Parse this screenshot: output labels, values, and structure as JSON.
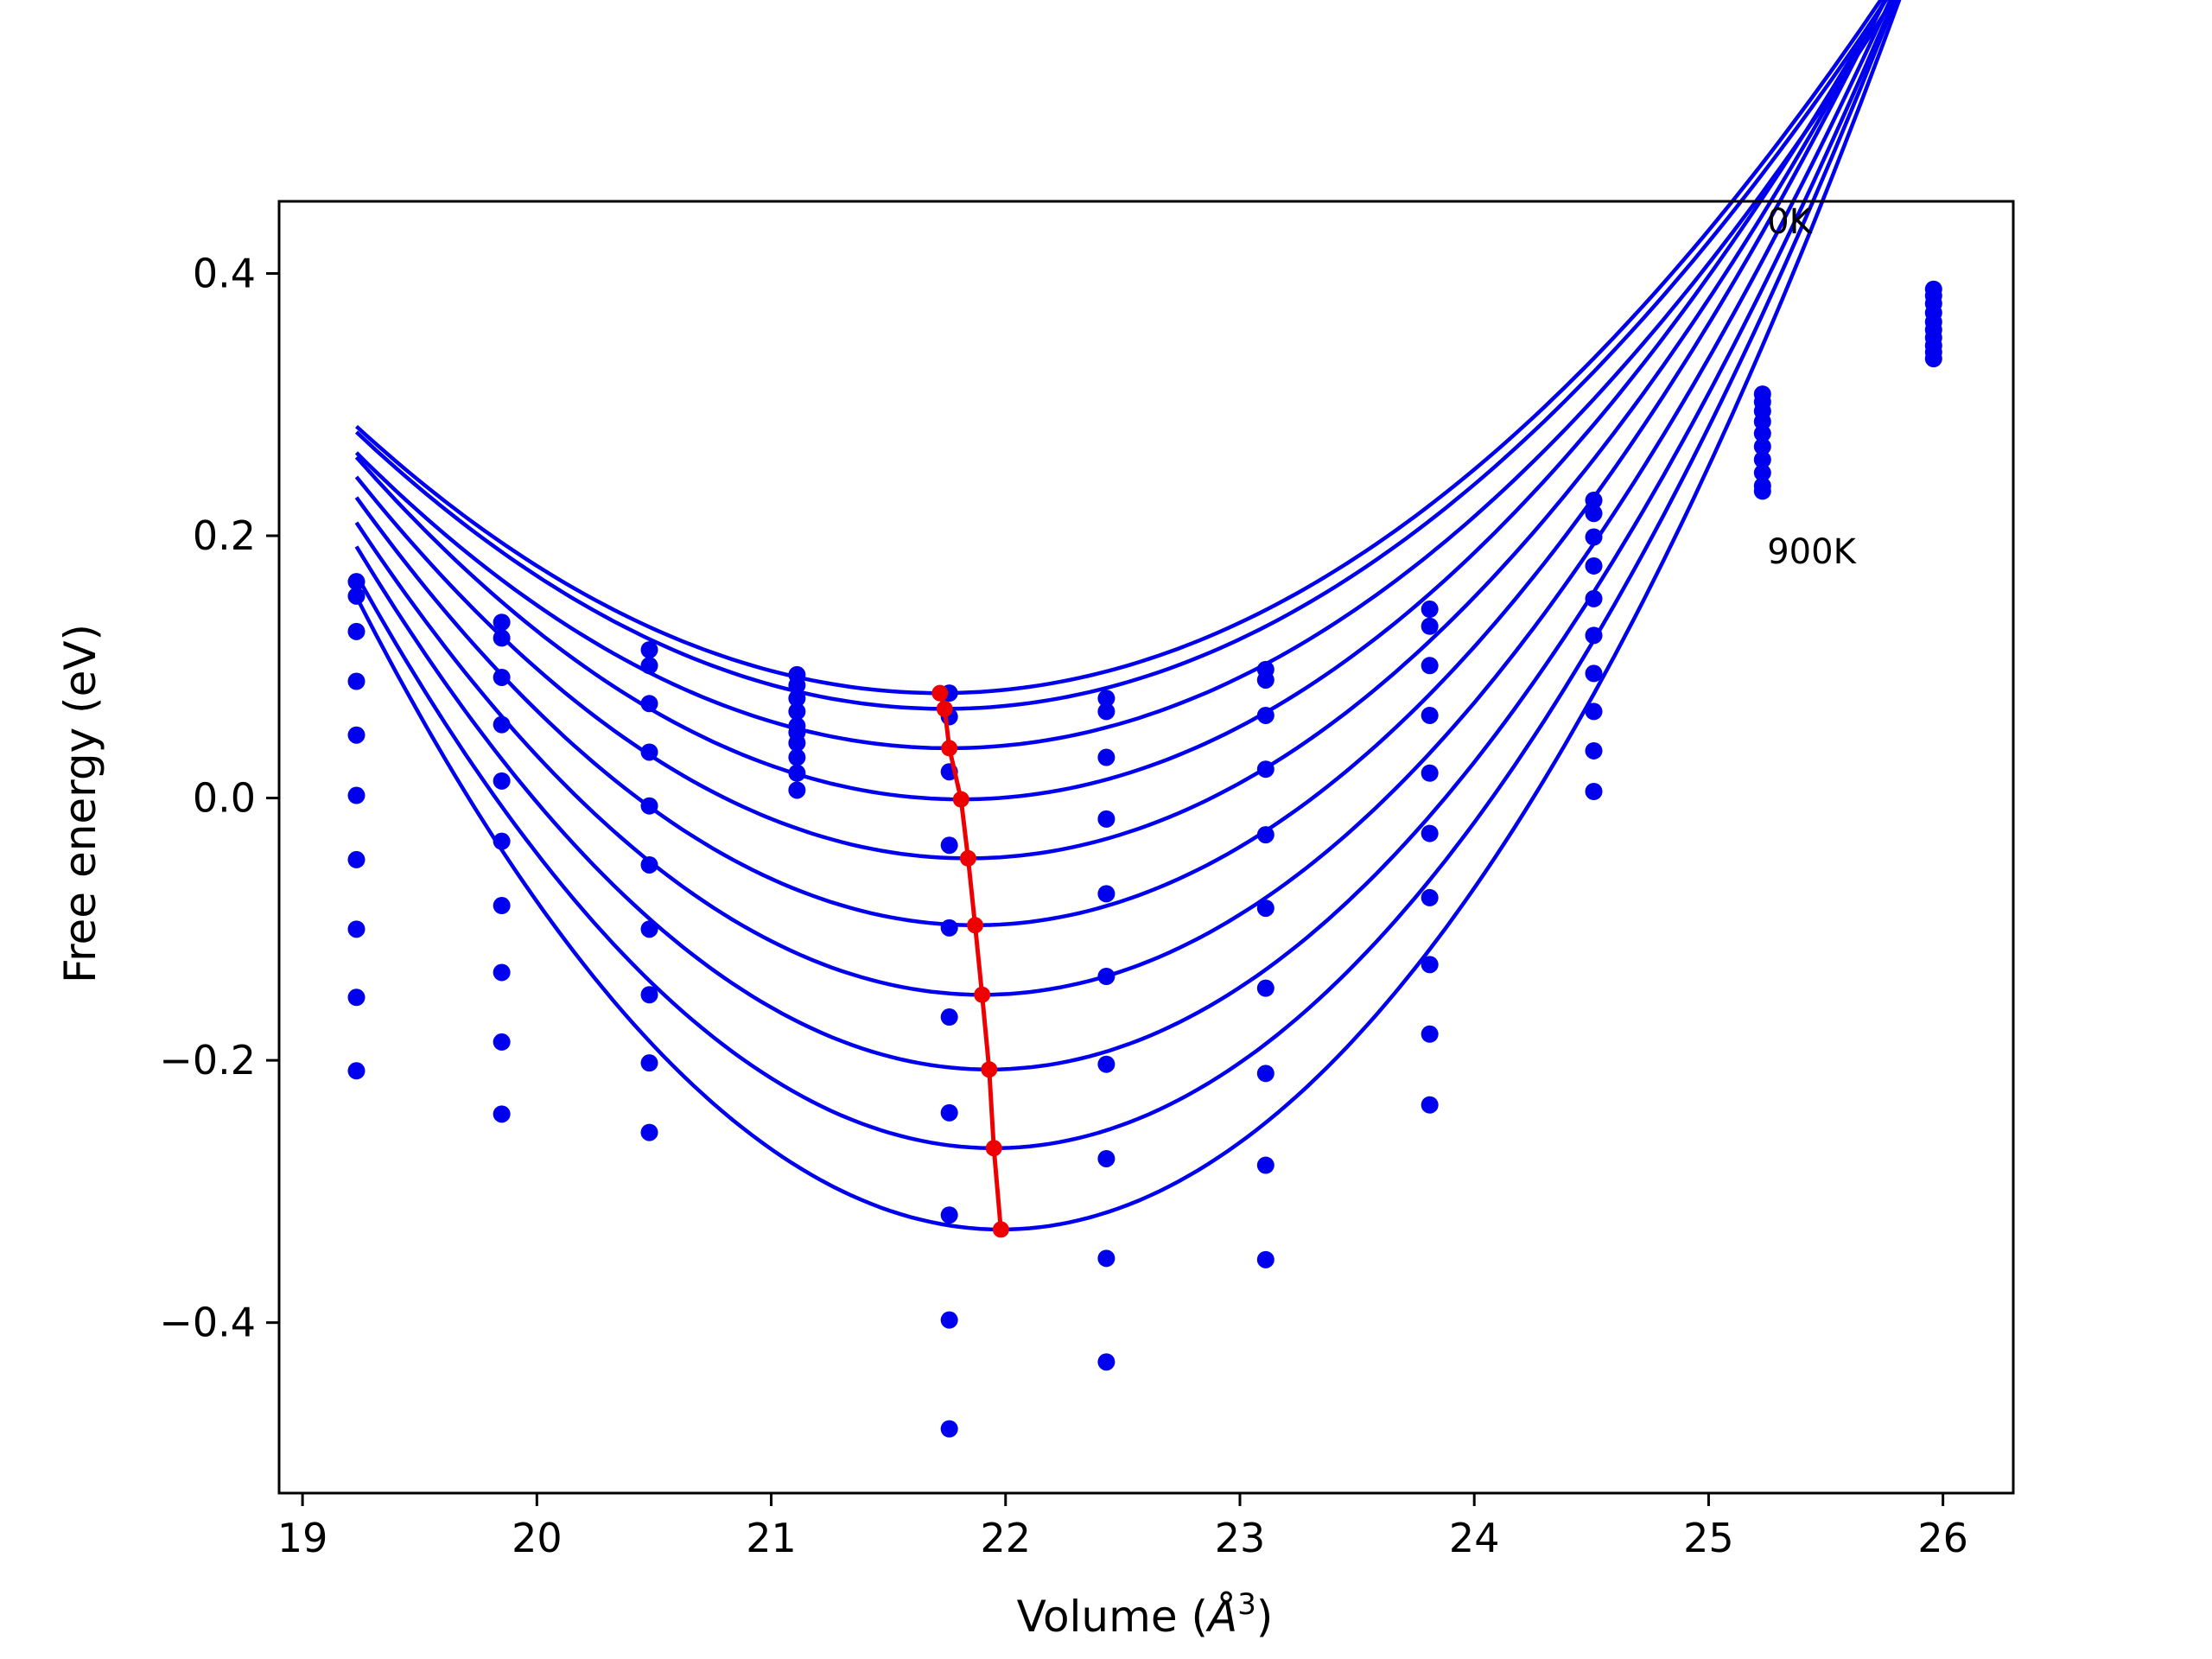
{
  "chart_data": {
    "type": "scatter",
    "title": "",
    "xlabel": "Volume (",
    "xlabel_symbol": "Å",
    "xlabel_sup": "3",
    "xlabel_close": ")",
    "ylabel": "Free energy (eV)",
    "xlim": [
      18.9,
      26.3
    ],
    "ylim": [
      -0.53,
      0.455
    ],
    "xticks": [
      19,
      20,
      21,
      22,
      23,
      24,
      25,
      26
    ],
    "xtick_labels": [
      "19",
      "20",
      "21",
      "22",
      "23",
      "24",
      "25",
      "26"
    ],
    "yticks": [
      -0.4,
      -0.2,
      0.0,
      0.2,
      0.4
    ],
    "ytick_labels": [
      "−0.4",
      "−0.2",
      "0.0",
      "0.2",
      "0.4"
    ],
    "grid": false,
    "legend": "none",
    "colors": {
      "points": "#0000ee",
      "fits": "#0000ee",
      "minima": "#ee0000",
      "axes": "#000000"
    },
    "annotations": [
      {
        "text": "0K",
        "x": 25.25,
        "y": 0.44
      },
      {
        "text": "900K",
        "x": 25.25,
        "y": 0.188
      }
    ],
    "points": [
      {
        "x": 19.23,
        "y": [
          0.165,
          0.154,
          0.127,
          0.089,
          0.048,
          0.002,
          -0.047,
          -0.1,
          -0.152,
          -0.208
        ]
      },
      {
        "x": 19.85,
        "y": [
          0.134,
          0.122,
          0.092,
          0.056,
          0.013,
          -0.033,
          -0.082,
          -0.133,
          -0.186,
          -0.241
        ]
      },
      {
        "x": 20.48,
        "y": [
          0.113,
          0.101,
          0.072,
          0.035,
          -0.006,
          -0.051,
          -0.1,
          -0.15,
          -0.202,
          -0.255
        ]
      },
      {
        "x": 21.11,
        "y": [
          0.094,
          0.086,
          0.076,
          0.066,
          0.055,
          0.05,
          0.042,
          0.031,
          0.019,
          0.006
        ]
      },
      {
        "x": 21.76,
        "y": [
          0.08,
          0.062,
          0.02,
          -0.036,
          -0.099,
          -0.167,
          -0.24,
          -0.318,
          -0.398,
          -0.481
        ]
      },
      {
        "x": 22.43,
        "y": [
          0.076,
          0.066,
          0.031,
          -0.016,
          -0.073,
          -0.136,
          -0.203,
          -0.275,
          -0.351,
          -0.43
        ]
      },
      {
        "x": 23.11,
        "y": [
          0.098,
          0.09,
          0.063,
          0.022,
          -0.028,
          -0.084,
          -0.145,
          -0.21,
          -0.28,
          -0.352
        ]
      },
      {
        "x": 23.81,
        "y": [
          0.144,
          0.131,
          0.101,
          0.063,
          0.019,
          -0.027,
          -0.076,
          -0.127,
          -0.18,
          -0.234
        ]
      },
      {
        "x": 24.51,
        "y": [
          0.227,
          0.217,
          0.199,
          0.177,
          0.152,
          0.124,
          0.095,
          0.066,
          0.036,
          0.005
        ]
      },
      {
        "x": 25.23,
        "y": [
          0.308,
          0.302,
          0.295,
          0.287,
          0.278,
          0.268,
          0.258,
          0.248,
          0.238,
          0.234
        ]
      },
      {
        "x": 25.96,
        "y": [
          0.388,
          0.383,
          0.377,
          0.37,
          0.363,
          0.357,
          0.351,
          0.345,
          0.34,
          0.335
        ]
      }
    ],
    "fit_curves": [
      {
        "v0": 21.72,
        "e0": 0.08,
        "k": 0.0328,
        "v_start": 19.23,
        "v_end": 25.99
      },
      {
        "v0": 21.74,
        "e0": 0.068,
        "k": 0.0335,
        "v_start": 19.23,
        "v_end": 25.99
      },
      {
        "v0": 21.76,
        "e0": 0.038,
        "k": 0.0352,
        "v_start": 19.23,
        "v_end": 25.99
      },
      {
        "v0": 21.81,
        "e0": -0.001,
        "k": 0.0392,
        "v_start": 19.23,
        "v_end": 25.99
      },
      {
        "v0": 21.84,
        "e0": -0.046,
        "k": 0.0427,
        "v_start": 19.23,
        "v_end": 25.99
      },
      {
        "v0": 21.87,
        "e0": -0.097,
        "k": 0.0468,
        "v_start": 19.23,
        "v_end": 25.99
      },
      {
        "v0": 21.9,
        "e0": -0.15,
        "k": 0.0505,
        "v_start": 19.23,
        "v_end": 25.99
      },
      {
        "v0": 21.93,
        "e0": -0.207,
        "k": 0.0547,
        "v_start": 19.23,
        "v_end": 25.99
      },
      {
        "v0": 21.95,
        "e0": -0.267,
        "k": 0.0591,
        "v_start": 19.23,
        "v_end": 25.99
      },
      {
        "v0": 21.98,
        "e0": -0.329,
        "k": 0.0638,
        "v_start": 19.23,
        "v_end": 25.99
      }
    ],
    "minima": {
      "x": [
        21.72,
        21.74,
        21.76,
        21.81,
        21.84,
        21.87,
        21.9,
        21.93,
        21.95,
        21.98
      ],
      "y": [
        0.08,
        0.068,
        0.038,
        -0.001,
        -0.046,
        -0.097,
        -0.15,
        -0.207,
        -0.267,
        -0.329
      ]
    }
  }
}
